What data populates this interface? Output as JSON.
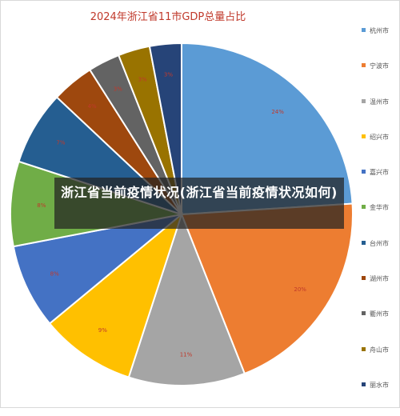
{
  "overlay_text": "浙江省当前疫情状况(浙江省当前疫情状况如何)",
  "chart_data": {
    "type": "pie",
    "title": "2024年浙江省11市GDP总量占比",
    "legend_position": "right",
    "categories": [
      "杭州市",
      "宁波市",
      "温州市",
      "绍兴市",
      "嘉兴市",
      "金华市",
      "台州市",
      "湖州市",
      "衢州市",
      "舟山市",
      "丽水市"
    ],
    "values": [
      24,
      20,
      11,
      9,
      8,
      8,
      7,
      4,
      3,
      3,
      3
    ],
    "labels": [
      "24%",
      "20%",
      "11%",
      "9%",
      "8%",
      "8%",
      "7%",
      "4%",
      "3%",
      "3%",
      "3%"
    ],
    "colors": [
      "#5b9bd5",
      "#ed7d31",
      "#a5a5a5",
      "#ffc000",
      "#4472c4",
      "#70ad47",
      "#255e91",
      "#9e480e",
      "#636363",
      "#997300",
      "#264478"
    ]
  }
}
